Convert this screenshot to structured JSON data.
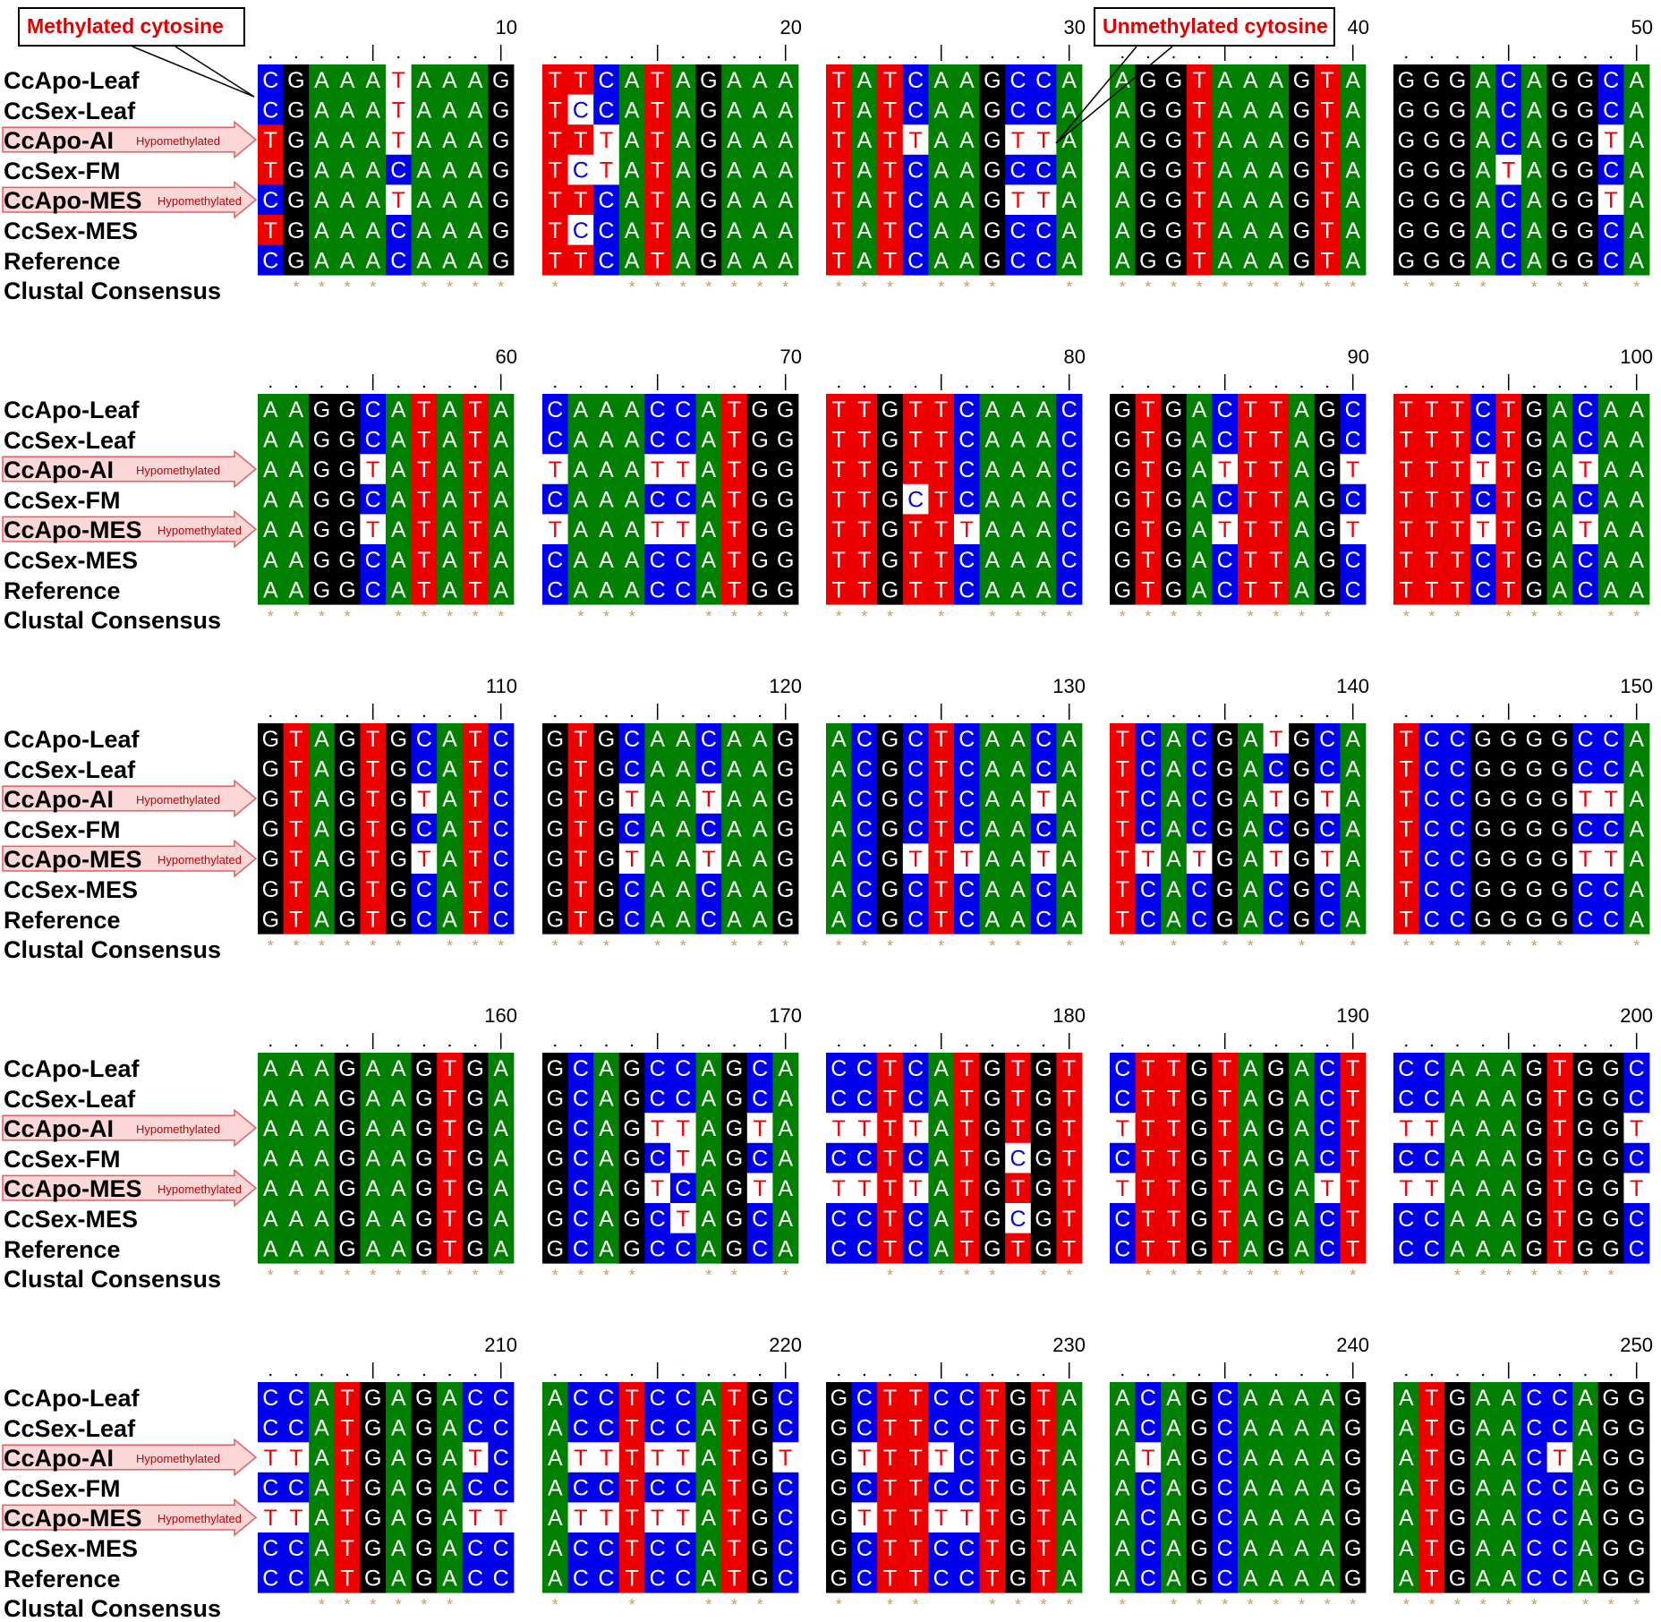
{
  "sequence_labels": [
    "CcApo-Leaf",
    "CcSex-Leaf",
    "CcApo-AI",
    "CcSex-FM",
    "CcApo-MES",
    "CcSex-MES",
    "Reference"
  ],
  "consensus_label": "Clustal Consensus",
  "hypomethylated_rows": [
    2,
    4
  ],
  "hypomethylated_label": "Hypomethylated",
  "callouts": {
    "methylated": "Methylated cytosine",
    "unmethylated": "Unmethylated cytosine"
  },
  "colors": {
    "A": "#008000",
    "C": "#0000ee",
    "G": "#000000",
    "T": "#ee0000",
    "white_bg": "#ffffff",
    "hypomethylated_base": "#ee0000",
    "star": "#c8a060",
    "arrow_fill": "#fbd7d7",
    "arrow_stroke": "#e06060"
  },
  "blocks": [
    {
      "end": 10,
      "seqs": [
        "CGAAATAAAG",
        "CGAAATAAAG",
        "TGAAATAAAG",
        "TGAAACAAAG",
        "CGAAATAAAG",
        "TGAAACAAAG",
        "CGAAACAAAG"
      ],
      "highlight": [
        [
          0,
          0
        ],
        [
          0,
          1
        ],
        [
          0,
          2
        ],
        [
          0,
          3
        ],
        [
          0,
          4
        ],
        [
          0,
          5
        ],
        [
          0,
          6
        ]
      ]
    },
    {
      "end": 20,
      "seqs": [
        "TTCATAGAAA",
        "TCCATAGAAA",
        "TTTATAGAAA",
        "TCTATAGAAA",
        "TTCATAGAAA",
        "TCCATAGAAA",
        "TTCATAGAAA"
      ]
    },
    {
      "end": 30,
      "seqs": [
        "TATCAAGCCA",
        "TATCAAGCCA",
        "TATTAAGTTA",
        "TATCAAGCCA",
        "TATCAAGTTA",
        "TATCAAGCCA",
        "TATCAAGCCA"
      ]
    },
    {
      "end": 40,
      "seqs": [
        "AGGTAAAGTA",
        "AGGTAAAGTA",
        "AGGTAAAGTA",
        "AGGTAAAGTA",
        "AGGTAAAGTA",
        "AGGTAAAGTA",
        "AGGTAAAGTA"
      ]
    },
    {
      "end": 50,
      "seqs": [
        "GGGACAGGCA",
        "GGGACAGGCA",
        "GGGACAGGTA",
        "GGGATAGGCA",
        "GGGACAGGTA",
        "GGGACAGGCA",
        "GGGACAGGCA"
      ]
    },
    {
      "end": 60,
      "seqs": [
        "AAGGCATATA",
        "AAGGCATATA",
        "AAGGTATATA",
        "AAGGCATATA",
        "AAGGTATATA",
        "AAGGCATATA",
        "AAGGCATATA"
      ]
    },
    {
      "end": 70,
      "seqs": [
        "CAAACCATGG",
        "CAAACCATGG",
        "TAAATTATGG",
        "CAAACCATGG",
        "TAAATTATGG",
        "CAAACCATGG",
        "CAAACCATGG"
      ]
    },
    {
      "end": 80,
      "seqs": [
        "TTGTTCAAAC",
        "TTGTTCAAAC",
        "TTGTTCAAAC",
        "TTGCTCAAAC",
        "TTGTTTAAAC",
        "TTGTTCAAAC",
        "TTGTTCAAAC"
      ]
    },
    {
      "end": 90,
      "seqs": [
        "GTGACTTAGC",
        "GTGACTTAGC",
        "GTGATTTAGT",
        "GTGACTTAGC",
        "GTGATTTAGT",
        "GTGACTTAGC",
        "GTGACTTAGC"
      ]
    },
    {
      "end": 100,
      "seqs": [
        "TTTCTGACAA",
        "TTTCTGACAA",
        "TTTTTGATAA",
        "TTTCTGACAA",
        "TTTTTGATAA",
        "TTTCTGACAA",
        "TTTCTGACAA"
      ]
    },
    {
      "end": 110,
      "seqs": [
        "GTAGTGCATC",
        "GTAGTGCATC",
        "GTAGTGTATC",
        "GTAGTGCATC",
        "GTAGTGTATC",
        "GTAGTGCATC",
        "GTAGTGCATC"
      ]
    },
    {
      "end": 120,
      "seqs": [
        "GTGCAACAAG",
        "GTGCAACAAG",
        "GTGTAATAAG",
        "GTGCAACAAG",
        "GTGTAATAAG",
        "GTGCAACAAG",
        "GTGCAACAAG"
      ]
    },
    {
      "end": 130,
      "seqs": [
        "ACGCTCAACA",
        "ACGCTCAACA",
        "ACGCTCAATA",
        "ACGCTCAACA",
        "ACGTTTAATA",
        "ACGCTCAACA",
        "ACGCTCAACA"
      ]
    },
    {
      "end": 140,
      "seqs": [
        "TCACGATGCA",
        "TCACGACGCA",
        "TCACGATGTA",
        "TCACGACGCA",
        "TTATGATGTA",
        "TCACGACGCA",
        "TCACGACGCA"
      ]
    },
    {
      "end": 150,
      "seqs": [
        "TCCGGGGCCA",
        "TCCGGGGCCA",
        "TCCGGGGTTA",
        "TCCGGGGCCA",
        "TCCGGGGTTA",
        "TCCGGGGCCA",
        "TCCGGGGCCA"
      ]
    },
    {
      "end": 160,
      "seqs": [
        "AAAGAAGTGA",
        "AAAGAAGTGA",
        "AAAGAAGTGA",
        "AAAGAAGTGA",
        "AAAGAAGTGA",
        "AAAGAAGTGA",
        "AAAGAAGTGA"
      ]
    },
    {
      "end": 170,
      "seqs": [
        "GCAGCCAGCA",
        "GCAGCCAGCA",
        "GCAGTTAGTA",
        "GCAGCTAGCA",
        "GCAGTCAGTA",
        "GCAGCTAGCA",
        "GCAGCCAGCA"
      ]
    },
    {
      "end": 180,
      "seqs": [
        "CCTCATGTGT",
        "CCTCATGTGT",
        "TTTTATGTGT",
        "CCTCATGCGT",
        "TTTTATGTGT",
        "CCTCATGCGT",
        "CCTCATGTGT"
      ]
    },
    {
      "end": 190,
      "seqs": [
        "CTTGTAGACT",
        "CTTGTAGACT",
        "TTTGTAGACT",
        "CTTGTAGACT",
        "TTTGTAGATT",
        "CTTGTAGACT",
        "CTTGTAGACT"
      ]
    },
    {
      "end": 200,
      "seqs": [
        "CCAAAGTGGC",
        "CCAAAGTGGC",
        "TTAAAGTGGT",
        "CCAAAGTGGC",
        "TTAAAGTGGT",
        "CCAAAGTGGC",
        "CCAAAGTGGC"
      ]
    },
    {
      "end": 210,
      "seqs": [
        "CCATGAGACC",
        "CCATGAGACC",
        "TTATGAGATC",
        "CCATGAGACC",
        "TTATGAGATT",
        "CCATGAGACC",
        "CCATGAGACC"
      ]
    },
    {
      "end": 220,
      "seqs": [
        "ACCTCCATGC",
        "ACCTCCATGC",
        "ATTTTTATGT",
        "ACCTCCATGC",
        "ATTTTTATGC",
        "ACCTCCATGC",
        "ACCTCCATGC"
      ]
    },
    {
      "end": 230,
      "seqs": [
        "GCTTCCTGTA",
        "GCTTCCTGTA",
        "GTTTTCTGTA",
        "GCTTCCTGTA",
        "GTTTTTTGTA",
        "GCTTCCTGTA",
        "GCTTCCTGTA"
      ]
    },
    {
      "end": 240,
      "seqs": [
        "ACAGCAAAAG",
        "ACAGCAAAAG",
        "ATAGCAAAAG",
        "ACAGCAAAAG",
        "ACAGCAAAAG",
        "ACAGCAAAAG",
        "ACAGCAAAAG"
      ]
    },
    {
      "end": 250,
      "seqs": [
        "ATGAACCAGG",
        "ATGAACCAGG",
        "ATGAACTAGG",
        "ATGAACCAGG",
        "ATGAACCAGG",
        "ATGAACCAGG",
        "ATGAACCAGG"
      ]
    }
  ]
}
